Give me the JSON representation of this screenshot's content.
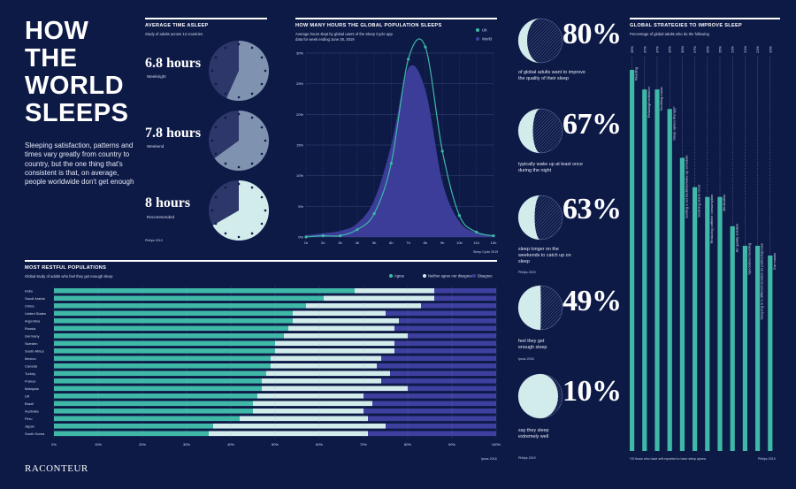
{
  "title": "HOW THE WORLD SLEEPS",
  "intro": "Sleeping satisfaction, patterns and times vary greatly from country to country, but the one thing that's consistent is that, on average, people worldwide don't get enough",
  "brand": "RACONTEUR",
  "colors": {
    "bg": "#0d1a46",
    "teal": "#3fb8a8",
    "light": "#d2ecec",
    "purple": "#3e3f9e",
    "clock_dark": "#2e3769",
    "clock_light": "#7f93b0"
  },
  "avg_time": {
    "title": "Average time asleep",
    "subtitle": "Study of adults across 12 countries",
    "source": "Philips 2019",
    "items": [
      {
        "value": "6.8 hours",
        "label": "Weeknight",
        "fraction": 0.567
      },
      {
        "value": "7.8 hours",
        "label": "Weekend",
        "fraction": 0.65
      },
      {
        "value": "8 hours",
        "label": "Recommended",
        "fraction": 0.667
      }
    ]
  },
  "pop_sleep": {
    "title": "How many hours the global population sleeps",
    "subtitle_1": "Average hours slept by global users of the Sleep Cycle app",
    "subtitle_2": "data for week ending June 25, 2019",
    "source": "Sleep Cycle 2019"
  },
  "stats": {
    "source_1": "Philips 2019",
    "source_2": "Ipsos 2018",
    "source_3": "Philips 2019",
    "items": [
      {
        "value": "80%",
        "label": "of global adults want to improve the quality of their sleep",
        "fraction": 0.8
      },
      {
        "value": "67%",
        "label": "typically wake up at least once during the night",
        "fraction": 0.67
      },
      {
        "value": "63%",
        "label": "sleep longer on the weekends to catch up on sleep",
        "fraction": 0.63
      },
      {
        "value": "49%",
        "label": "feel they get enough sleep",
        "fraction": 0.49
      },
      {
        "value": "10%",
        "label": "say they sleep extremely well",
        "fraction": 0.1
      }
    ]
  },
  "restful": {
    "title": "Most restful populations",
    "subtitle": "Global study of adults who feel they get enough sleep",
    "source": "Ipsos 2018"
  },
  "strategies": {
    "title": "Global strategies to improve sleep",
    "subtitle": "Percentage of global adults who do the following",
    "footnote": "*Of those who have self-reported to have sleep apnea",
    "source": "Philips 2019"
  },
  "chart_data": [
    {
      "type": "line",
      "title": "How many hours the global population sleeps",
      "x": [
        "1h",
        "2h",
        "3h",
        "4h",
        "5h",
        "6h",
        "7h",
        "8h",
        "9h",
        "10h",
        "11h",
        "12h"
      ],
      "ylim": [
        0,
        30
      ],
      "yticks": [
        "0%",
        "5%",
        "10%",
        "15%",
        "20%",
        "25%",
        "30%"
      ],
      "series": [
        {
          "name": "UK",
          "values": [
            0,
            0.2,
            0.2,
            1.2,
            3.8,
            12,
            29,
            31,
            14,
            3.5,
            0.8,
            0.2
          ]
        },
        {
          "name": "World",
          "values": [
            0.3,
            0.6,
            1.0,
            2.2,
            6,
            15,
            27.5,
            24,
            9,
            2.5,
            0.7,
            0.2
          ]
        }
      ]
    },
    {
      "type": "bar",
      "orientation": "horizontal-stacked",
      "title": "Most restful populations",
      "xticks": [
        "0%",
        "10%",
        "20%",
        "30%",
        "40%",
        "50%",
        "60%",
        "70%",
        "80%",
        "90%",
        "100%"
      ],
      "legend": [
        "Agree",
        "Neither agree nor disagree",
        "Disagree"
      ],
      "categories": [
        "India",
        "Saudi Arabia",
        "China",
        "United States",
        "Argentina",
        "Russia",
        "Germany",
        "Sweden",
        "South Africa",
        "Mexico",
        "Canada",
        "Turkey",
        "France",
        "Malaysia",
        "UK",
        "Brazil",
        "Australia",
        "Peru",
        "Japan",
        "South Korea"
      ],
      "series": [
        {
          "name": "Agree",
          "values": [
            68,
            61,
            57,
            54,
            54,
            53,
            52,
            50,
            50,
            49,
            49,
            48,
            47,
            47,
            46,
            45,
            45,
            42,
            36,
            35
          ]
        },
        {
          "name": "Neither agree nor disagree",
          "values": [
            18,
            25,
            26,
            21,
            24,
            24,
            28,
            27,
            27,
            25,
            24,
            28,
            27,
            33,
            24,
            27,
            25,
            29,
            39,
            36
          ]
        },
        {
          "name": "Disagree",
          "values": [
            14,
            14,
            17,
            25,
            22,
            23,
            20,
            23,
            23,
            26,
            27,
            24,
            26,
            20,
            30,
            28,
            30,
            29,
            25,
            29
          ]
        }
      ]
    },
    {
      "type": "bar",
      "title": "Global strategies to improve sleep",
      "categories": [
        "Reading",
        "Relaxing/meditation",
        "Soothing music",
        "Sleep apnea therapy*",
        "Getting a set bedtime/wake-up schedule",
        "Soothing alarm clock",
        "Reducing caffeine consumption",
        "Medication",
        "Air quality solution",
        "Specialised bedding",
        "Sleeping in a different location as partner/spouse",
        "Ear masks"
      ],
      "labels": [
        "39%",
        "37%",
        "37%",
        "35%",
        "30%",
        "27%",
        "26%",
        "26%",
        "23%",
        "21%",
        "21%",
        "20%"
      ],
      "values": [
        39,
        37,
        37,
        35,
        30,
        27,
        26,
        26,
        23,
        21,
        21,
        20
      ]
    }
  ]
}
